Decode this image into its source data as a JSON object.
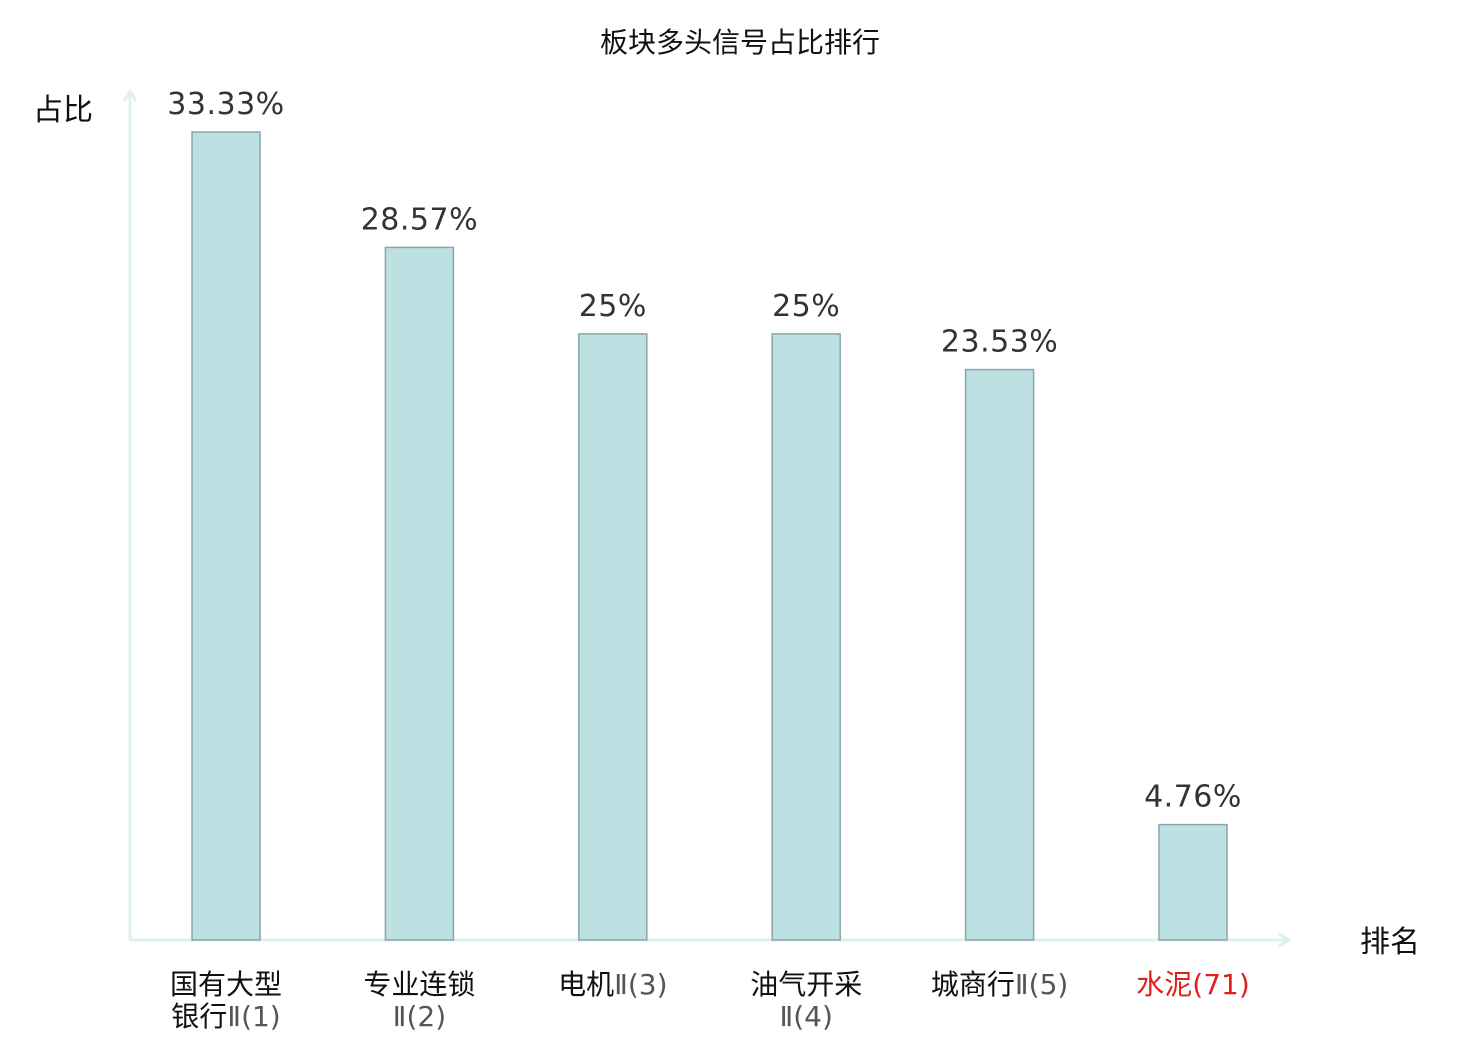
{
  "chart_data": {
    "type": "bar",
    "title": "板块多头信号占比排行",
    "ylabel": "占比",
    "xlabel": "排名",
    "ylim": [
      0,
      35
    ],
    "grid": false,
    "legend": "none",
    "colors": {
      "bar_fill": "#bde0e3",
      "bar_stroke": "#8aa6a9",
      "axis": "#dff0ee",
      "highlight": "#e0201b",
      "label": "#333333",
      "rank_text": "#555555"
    },
    "categories": [
      {
        "name": "国有大型银行",
        "lines": [
          "国有大型",
          "银行"
        ],
        "rank_text": "Ⅱ(1)",
        "highlight": false
      },
      {
        "name": "专业连锁",
        "lines": [
          "专业连锁",
          ""
        ],
        "rank_text": "Ⅱ(2)",
        "highlight": false
      },
      {
        "name": "电机",
        "lines": [
          "电机"
        ],
        "rank_text": "Ⅱ(3)",
        "highlight": false
      },
      {
        "name": "油气开采",
        "lines": [
          "油气开采",
          ""
        ],
        "rank_text": "Ⅱ(4)",
        "highlight": false
      },
      {
        "name": "城商行",
        "lines": [
          "城商行"
        ],
        "rank_text": "Ⅱ(5)",
        "highlight": false
      },
      {
        "name": "水泥",
        "lines": [
          "水泥"
        ],
        "rank_text": "(71)",
        "highlight": true
      }
    ],
    "values": [
      33.33,
      28.57,
      25,
      25,
      23.53,
      4.76
    ],
    "value_labels": [
      "33.33%",
      "28.57%",
      "25%",
      "25%",
      "23.53%",
      "4.76%"
    ]
  }
}
